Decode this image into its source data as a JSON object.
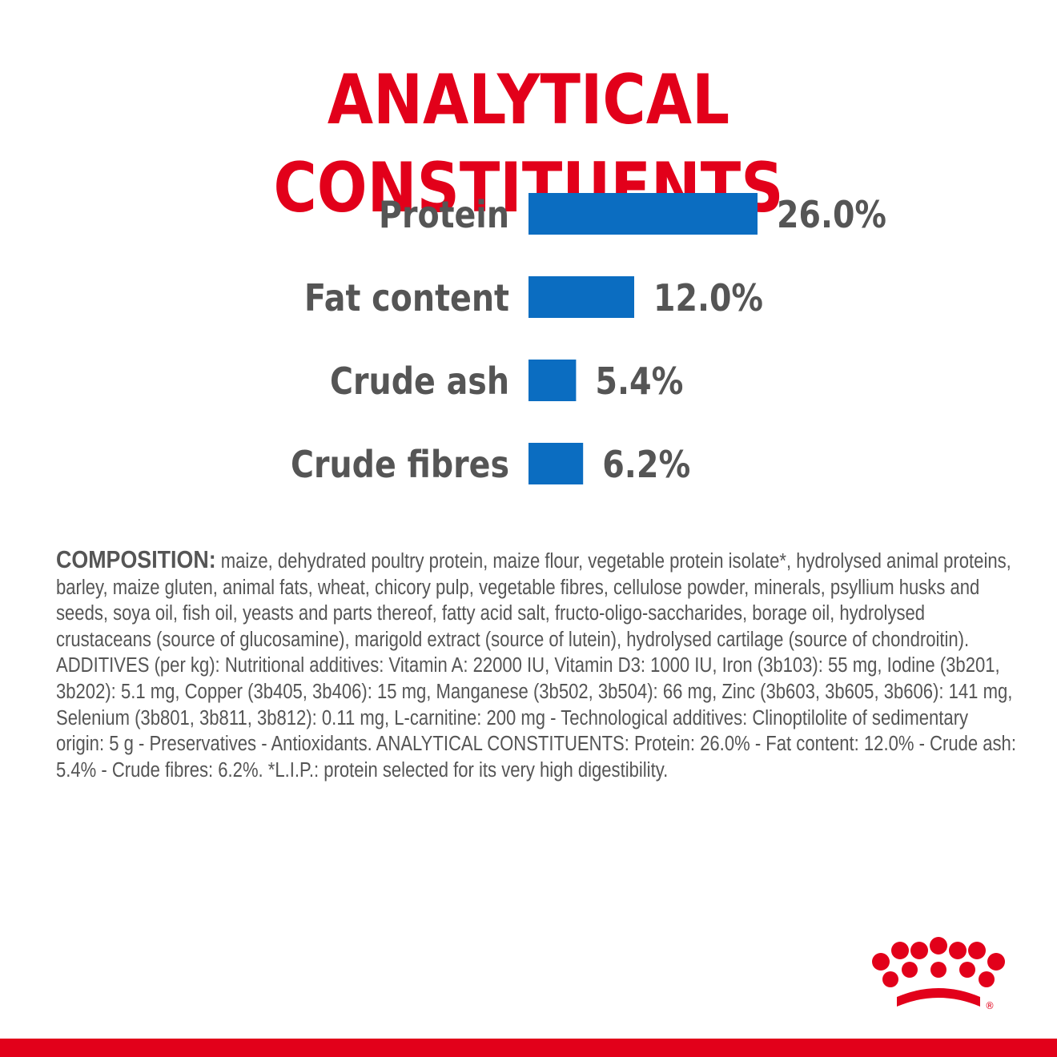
{
  "title": "ANALYTICAL CONSTITUENTS",
  "colors": {
    "title": "#e2001a",
    "bar": "#0b6dc1",
    "label": "#555555",
    "value": "#555555",
    "brand_red": "#e2001a"
  },
  "chart_data": {
    "type": "bar",
    "orientation": "horizontal",
    "categories": [
      "Protein",
      "Fat content",
      "Crude ash",
      "Crude fibres"
    ],
    "values": [
      26.0,
      12.0,
      5.4,
      6.2
    ],
    "value_labels": [
      "26.0%",
      "12.0%",
      "5.4%",
      "6.2%"
    ],
    "title": "ANALYTICAL CONSTITUENTS",
    "xlabel": "",
    "ylabel": "",
    "grid": false
  },
  "composition": {
    "label": "COMPOSITION:",
    "text": " maize, dehydrated poultry protein, maize flour, vegetable protein isolate*, hydrolysed animal proteins, barley, maize gluten, animal fats, wheat, chicory pulp, vegetable fibres, cellulose powder, minerals, psyllium husks and seeds, soya oil, fish oil, yeasts and parts thereof, fatty acid salt, fructo-oligo-saccharides, borage oil, hydrolysed crustaceans (source of glucosamine), marigold extract (source of lutein), hydrolysed cartilage (source of chondroitin). ADDITIVES (per kg): Nutritional additives: Vitamin A: 22000 IU, Vitamin D3: 1000 IU, Iron (3b103): 55 mg, Iodine (3b201, 3b202): 5.1 mg, Copper (3b405, 3b406): 15 mg, Manganese (3b502, 3b504): 66 mg, Zinc (3b603, 3b605, 3b606): 141 mg, Selenium (3b801, 3b811, 3b812): 0.11 mg, L-carnitine: 200 mg - Technological additives: Clinoptilolite of sedimentary origin: 5 g - Preservatives - Antioxidants. ANALYTICAL CONSTITUENTS: Protein: 26.0% - Fat content: 12.0% - Crude ash: 5.4% - Crude fibres: 6.2%. *L.I.P.: protein selected for its very high digestibility."
  },
  "logo": {
    "icon": "crown-icon",
    "registered_mark": "®"
  }
}
